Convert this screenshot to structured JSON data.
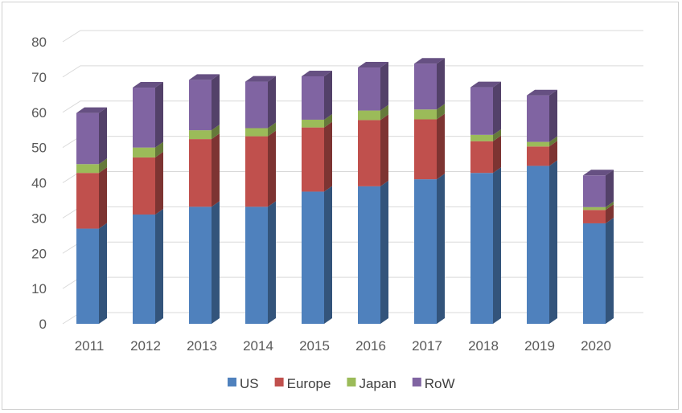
{
  "chart_data": {
    "type": "bar",
    "stacked": true,
    "style": "3d-column",
    "categories": [
      "2011",
      "2012",
      "2013",
      "2014",
      "2015",
      "2016",
      "2017",
      "2018",
      "2019",
      "2020"
    ],
    "series": [
      {
        "name": "US",
        "color": "#4F81BD",
        "values": [
          27.0,
          31.0,
          33.2,
          33.2,
          37.5,
          39.0,
          41.0,
          42.8,
          44.8,
          28.5
        ]
      },
      {
        "name": "Europe",
        "color": "#C0504D",
        "values": [
          15.8,
          16.2,
          19.2,
          20.0,
          18.2,
          18.8,
          17.0,
          9.0,
          5.5,
          3.8
        ]
      },
      {
        "name": "Japan",
        "color": "#9BBB59",
        "values": [
          2.5,
          2.8,
          2.5,
          2.3,
          2.2,
          2.7,
          2.8,
          1.8,
          1.3,
          0.8
        ]
      },
      {
        "name": "RoW",
        "color": "#8064A2",
        "values": [
          14.5,
          17.0,
          14.3,
          13.2,
          12.3,
          12.2,
          13.0,
          13.5,
          13.2,
          9.0
        ]
      }
    ],
    "ylim": [
      0,
      80
    ],
    "yticks": [
      "0",
      "10",
      "20",
      "30",
      "40",
      "50",
      "60",
      "70",
      "80"
    ],
    "grid": true,
    "legend_position": "bottom"
  }
}
